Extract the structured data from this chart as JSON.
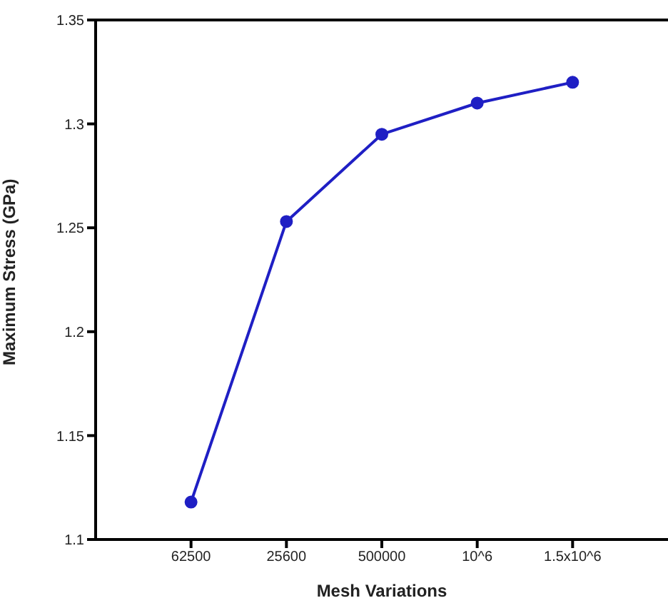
{
  "chart_data": {
    "type": "line",
    "xlabel": "Mesh Variations",
    "ylabel": "Maximum Stress (GPa)",
    "categories": [
      "62500",
      "25600",
      "500000",
      "10^6",
      "1.5x10^6"
    ],
    "series": [
      {
        "color": "#1f1fc4",
        "values": [
          1.118,
          1.253,
          1.295,
          1.31,
          1.32
        ]
      }
    ],
    "ylim": [
      1.1,
      1.35
    ],
    "yticks": [
      1.1,
      1.15,
      1.2,
      1.25,
      1.3,
      1.35
    ],
    "grid": false,
    "legend": false,
    "marker": "circle",
    "line_style": "solid"
  }
}
